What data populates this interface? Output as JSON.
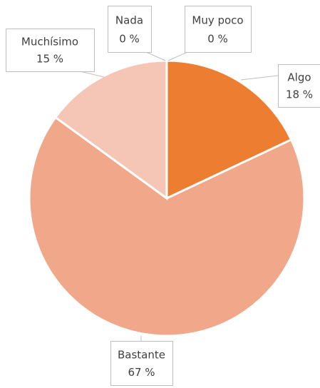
{
  "chart_data": {
    "type": "pie",
    "categories": [
      "Nada",
      "Muy poco",
      "Algo",
      "Bastante",
      "Muchísimo"
    ],
    "values": [
      0,
      0,
      18,
      67,
      15
    ],
    "value_labels": [
      "0 %",
      "0 %",
      "18 %",
      "67 %",
      "15 %"
    ],
    "colors": [
      "#c55a11",
      "#f4b183",
      "#ed7d31",
      "#f1a88a",
      "#f5c6b5"
    ]
  }
}
